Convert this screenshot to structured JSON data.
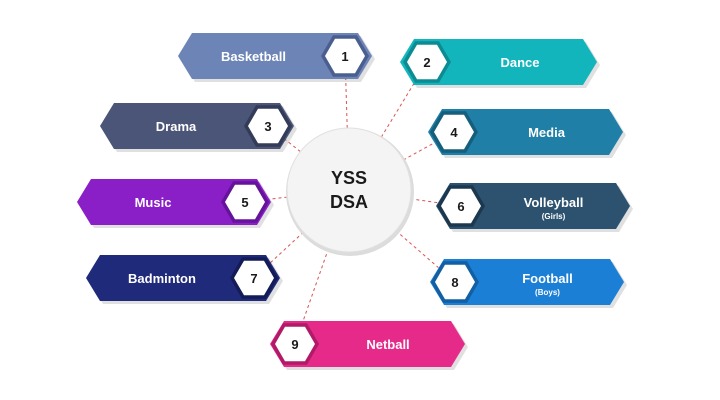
{
  "center": {
    "line1": "YSS",
    "line2": "DSA"
  },
  "items": [
    {
      "number": "1",
      "label": "Basketball",
      "sub": "",
      "color": "#6d84b6",
      "dark": "#4a5f8f"
    },
    {
      "number": "2",
      "label": "Dance",
      "sub": "",
      "color": "#13b5bd",
      "dark": "#0c8c92"
    },
    {
      "number": "3",
      "label": "Drama",
      "sub": "",
      "color": "#4a5577",
      "dark": "#323b57"
    },
    {
      "number": "4",
      "label": "Media",
      "sub": "",
      "color": "#1f7fa6",
      "dark": "#155f7d"
    },
    {
      "number": "5",
      "label": "Music",
      "sub": "",
      "color": "#8a1fc7",
      "dark": "#65139a"
    },
    {
      "number": "6",
      "label": "Volleyball",
      "sub": "(Girls)",
      "color": "#2c5270",
      "dark": "#1c384e"
    },
    {
      "number": "7",
      "label": "Badminton",
      "sub": "",
      "color": "#1f2a7a",
      "dark": "#141c58"
    },
    {
      "number": "8",
      "label": "Football",
      "sub": "(Boys)",
      "color": "#1b7fd6",
      "dark": "#125fa3"
    },
    {
      "number": "9",
      "label": "Netball",
      "sub": "",
      "color": "#e52a8a",
      "dark": "#b01a68"
    }
  ],
  "colors": {
    "connector": "#d9534f",
    "center_fill": "#f4f4f4",
    "center_stroke": "#e0e0e0"
  }
}
